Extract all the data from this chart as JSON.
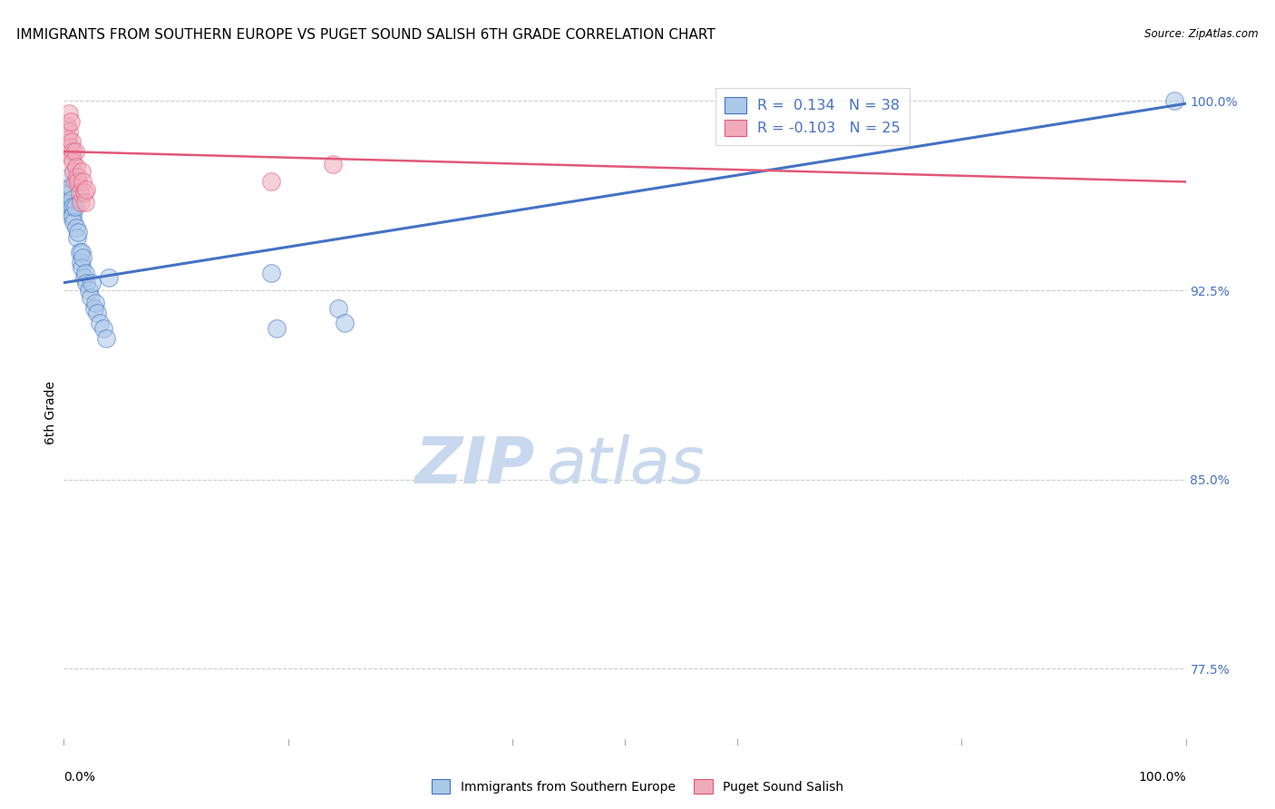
{
  "title": "IMMIGRANTS FROM SOUTHERN EUROPE VS PUGET SOUND SALISH 6TH GRADE CORRELATION CHART",
  "source": "Source: ZipAtlas.com",
  "ylabel": "6th Grade",
  "xmin": 0.0,
  "xmax": 1.0,
  "ymin": 0.745,
  "ymax": 1.008,
  "yticks": [
    0.775,
    0.85,
    0.925,
    1.0
  ],
  "ytick_labels": [
    "77.5%",
    "85.0%",
    "92.5%",
    "100.0%"
  ],
  "blue_R": 0.134,
  "blue_N": 38,
  "pink_R": -0.103,
  "pink_N": 25,
  "blue_color": "#aac8e8",
  "pink_color": "#f0aabb",
  "blue_line_color": "#4472c4",
  "pink_line_color": "#e05878",
  "legend_blue_label": "Immigrants from Southern Europe",
  "legend_pink_label": "Puget Sound Salish",
  "watermark_zip": "ZIP",
  "watermark_atlas": "atlas",
  "blue_scatter_x": [
    0.003,
    0.004,
    0.005,
    0.005,
    0.006,
    0.006,
    0.007,
    0.007,
    0.008,
    0.008,
    0.009,
    0.01,
    0.011,
    0.012,
    0.013,
    0.014,
    0.015,
    0.016,
    0.016,
    0.017,
    0.018,
    0.019,
    0.02,
    0.022,
    0.024,
    0.025,
    0.027,
    0.028,
    0.03,
    0.032,
    0.035,
    0.038,
    0.04,
    0.185,
    0.19,
    0.245,
    0.25,
    0.99
  ],
  "blue_scatter_y": [
    0.965,
    0.96,
    0.97,
    0.963,
    0.958,
    0.966,
    0.954,
    0.961,
    0.958,
    0.955,
    0.952,
    0.958,
    0.95,
    0.946,
    0.948,
    0.94,
    0.936,
    0.94,
    0.934,
    0.938,
    0.93,
    0.932,
    0.928,
    0.925,
    0.922,
    0.928,
    0.918,
    0.92,
    0.916,
    0.912,
    0.91,
    0.906,
    0.93,
    0.932,
    0.91,
    0.918,
    0.912,
    1.0
  ],
  "pink_scatter_x": [
    0.003,
    0.004,
    0.005,
    0.005,
    0.006,
    0.006,
    0.007,
    0.007,
    0.008,
    0.008,
    0.009,
    0.01,
    0.01,
    0.011,
    0.012,
    0.013,
    0.014,
    0.015,
    0.016,
    0.017,
    0.018,
    0.019,
    0.02,
    0.185,
    0.24
  ],
  "pink_scatter_y": [
    0.99,
    0.985,
    0.995,
    0.988,
    0.982,
    0.992,
    0.978,
    0.984,
    0.98,
    0.976,
    0.972,
    0.98,
    0.968,
    0.974,
    0.97,
    0.968,
    0.964,
    0.96,
    0.972,
    0.968,
    0.964,
    0.96,
    0.965,
    0.968,
    0.975
  ],
  "blue_line_x_start": 0.0,
  "blue_line_x_end": 1.0,
  "blue_line_y_start": 0.928,
  "blue_line_y_end": 0.999,
  "pink_line_x_start": 0.0,
  "pink_line_x_end": 1.0,
  "pink_line_y_start": 0.98,
  "pink_line_y_end": 0.968,
  "grid_color": "#cccccc",
  "title_fontsize": 11,
  "axis_label_fontsize": 10,
  "tick_label_color": "#4472c4",
  "tick_label_fontsize": 10,
  "watermark_fontsize_zip": 52,
  "watermark_fontsize_atlas": 52,
  "watermark_color_zip": "#c8d8ee",
  "watermark_color_atlas": "#c8d8ee",
  "background_color": "#ffffff"
}
